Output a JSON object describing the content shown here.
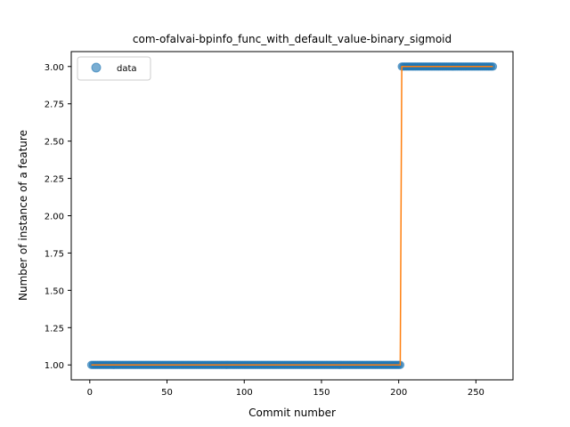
{
  "chart_data": {
    "type": "scatter",
    "title": "com-ofalvai-bpinfo_func_with_default_value-binary_sigmoid",
    "xlabel": "Commit number",
    "ylabel": "Number of instance of a feature",
    "xlim": [
      -12,
      274
    ],
    "ylim": [
      0.9,
      3.1
    ],
    "xticks": [
      0,
      50,
      100,
      150,
      200,
      250
    ],
    "yticks": [
      1.0,
      1.25,
      1.5,
      1.75,
      2.0,
      2.25,
      2.5,
      2.75,
      3.0
    ],
    "xtick_labels": [
      "0",
      "50",
      "100",
      "150",
      "200",
      "250"
    ],
    "ytick_labels": [
      "1.00",
      "1.25",
      "1.50",
      "1.75",
      "2.00",
      "2.25",
      "2.50",
      "2.75",
      "3.00"
    ],
    "legend": {
      "position": "upper-left",
      "entries": [
        "data"
      ]
    },
    "series": [
      {
        "name": "data",
        "kind": "markers",
        "color": "#1f77b4",
        "segments": [
          {
            "x_start": 1,
            "x_end": 201,
            "y": 1.0
          },
          {
            "x_start": 202,
            "x_end": 261,
            "y": 3.0
          }
        ]
      },
      {
        "kind": "line",
        "color": "#ff7f0e",
        "points": [
          [
            1,
            1.0
          ],
          [
            201,
            1.0
          ],
          [
            202,
            3.0
          ],
          [
            261,
            3.0
          ]
        ]
      }
    ]
  }
}
